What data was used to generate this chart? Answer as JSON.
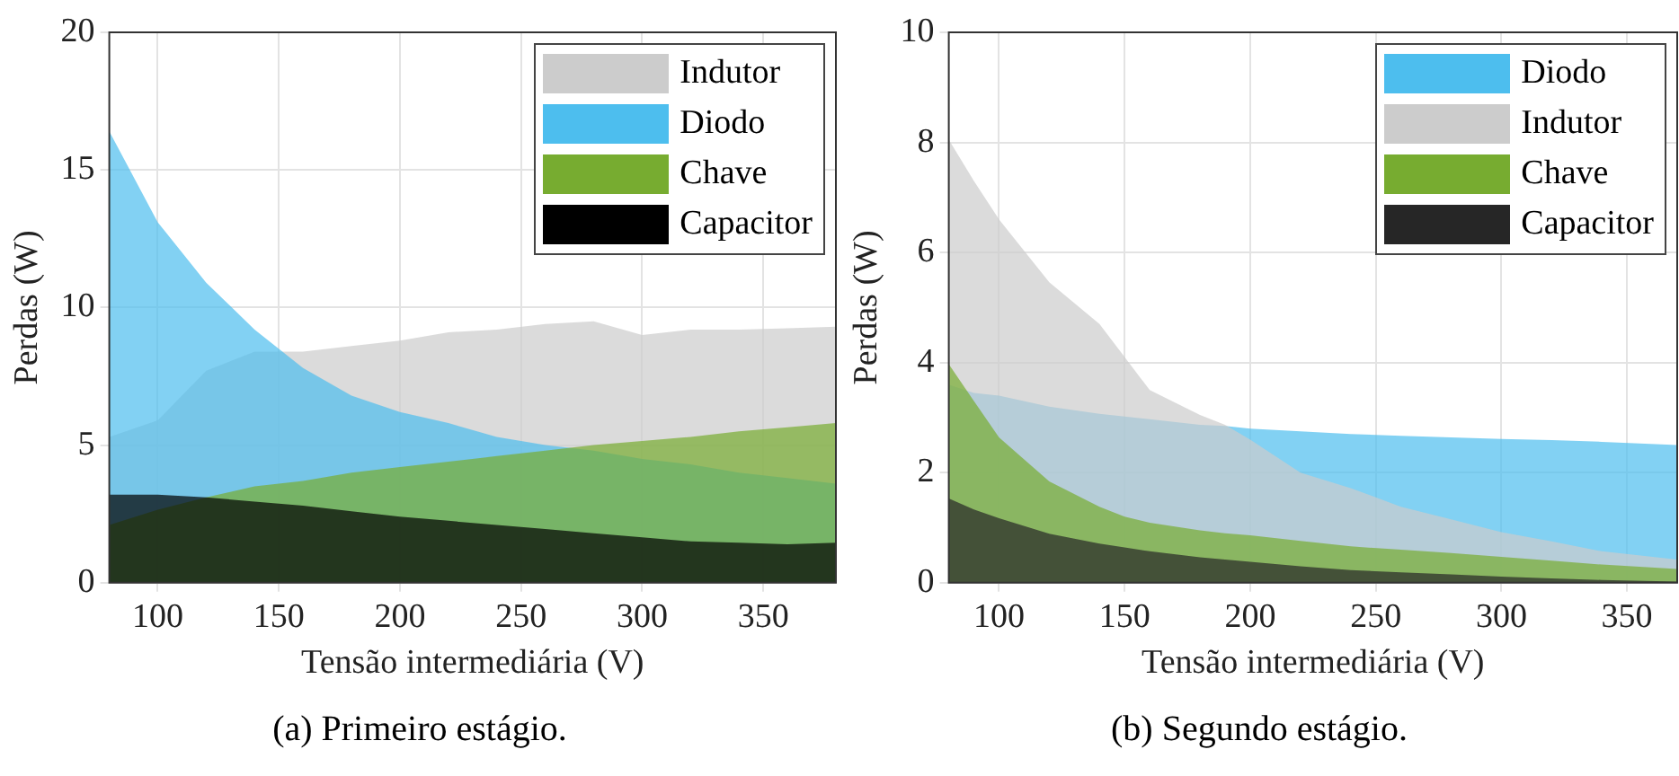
{
  "chart_data": [
    {
      "type": "area",
      "xlabel": "Tensão intermediária (V)",
      "ylabel": "Perdas (W)",
      "annotations": [
        "(a) Primeiro estágio."
      ],
      "xlim": [
        80,
        380
      ],
      "xticks": [
        100,
        150,
        200,
        250,
        300,
        350
      ],
      "ylim": [
        0,
        20
      ],
      "yticks": [
        0,
        5,
        10,
        15,
        20
      ],
      "grid": true,
      "legend": "top right",
      "x": [
        80,
        100,
        120,
        140,
        160,
        180,
        200,
        220,
        240,
        260,
        280,
        300,
        320,
        340,
        360,
        380
      ],
      "series": [
        {
          "name": "Indutor",
          "color": "#cccccc",
          "values": [
            5.3,
            5.9,
            7.7,
            8.4,
            8.4,
            8.6,
            8.8,
            9.1,
            9.2,
            9.4,
            9.5,
            9.0,
            9.2,
            9.2,
            9.25,
            9.3
          ]
        },
        {
          "name": "Diodo",
          "color": "#4dbeee",
          "values": [
            16.4,
            13.1,
            10.9,
            9.2,
            7.8,
            6.8,
            6.2,
            5.8,
            5.3,
            5.0,
            4.8,
            4.5,
            4.3,
            4.0,
            3.8,
            3.6
          ]
        },
        {
          "name": "Chave",
          "color": "#77ac30",
          "values": [
            2.1,
            2.65,
            3.1,
            3.5,
            3.7,
            4.0,
            4.2,
            4.4,
            4.6,
            4.8,
            5.0,
            5.15,
            5.3,
            5.5,
            5.65,
            5.8
          ]
        },
        {
          "name": "Capacitor",
          "color": "#000000",
          "values": [
            3.2,
            3.2,
            3.1,
            2.95,
            2.8,
            2.6,
            2.4,
            2.25,
            2.1,
            1.95,
            1.8,
            1.65,
            1.5,
            1.45,
            1.4,
            1.45
          ]
        }
      ]
    },
    {
      "type": "area",
      "xlabel": "Tensão intermediária (V)",
      "ylabel": "Perdas (W)",
      "annotations": [
        "(b) Segundo estágio."
      ],
      "xlim": [
        80,
        370
      ],
      "xticks": [
        100,
        150,
        200,
        250,
        300,
        350
      ],
      "ylim": [
        0,
        10
      ],
      "yticks": [
        0,
        2,
        4,
        6,
        8,
        10
      ],
      "grid": true,
      "legend": "top right",
      "x": [
        80,
        90,
        100,
        120,
        140,
        150,
        160,
        180,
        190,
        200,
        220,
        240,
        260,
        280,
        300,
        320,
        340,
        370
      ],
      "series": [
        {
          "name": "Diodo",
          "color": "#4dbeee",
          "values": [
            3.6,
            3.45,
            3.4,
            3.2,
            3.07,
            3.02,
            2.97,
            2.87,
            2.85,
            2.8,
            2.75,
            2.7,
            2.67,
            2.64,
            2.61,
            2.59,
            2.56,
            2.5
          ]
        },
        {
          "name": "Indutor",
          "color": "#cccccc",
          "values": [
            8.05,
            7.3,
            6.6,
            5.46,
            4.7,
            4.1,
            3.5,
            3.05,
            2.87,
            2.6,
            2.0,
            1.72,
            1.38,
            1.15,
            0.92,
            0.75,
            0.57,
            0.42
          ]
        },
        {
          "name": "Chave",
          "color": "#77ac30",
          "values": [
            3.97,
            3.3,
            2.64,
            1.84,
            1.38,
            1.2,
            1.09,
            0.95,
            0.9,
            0.86,
            0.76,
            0.66,
            0.6,
            0.54,
            0.47,
            0.4,
            0.33,
            0.25
          ]
        },
        {
          "name": "Capacitor",
          "color": "#262626",
          "values": [
            1.53,
            1.33,
            1.17,
            0.89,
            0.71,
            0.64,
            0.57,
            0.46,
            0.42,
            0.38,
            0.3,
            0.23,
            0.19,
            0.15,
            0.11,
            0.08,
            0.05,
            0.02
          ]
        }
      ]
    }
  ]
}
